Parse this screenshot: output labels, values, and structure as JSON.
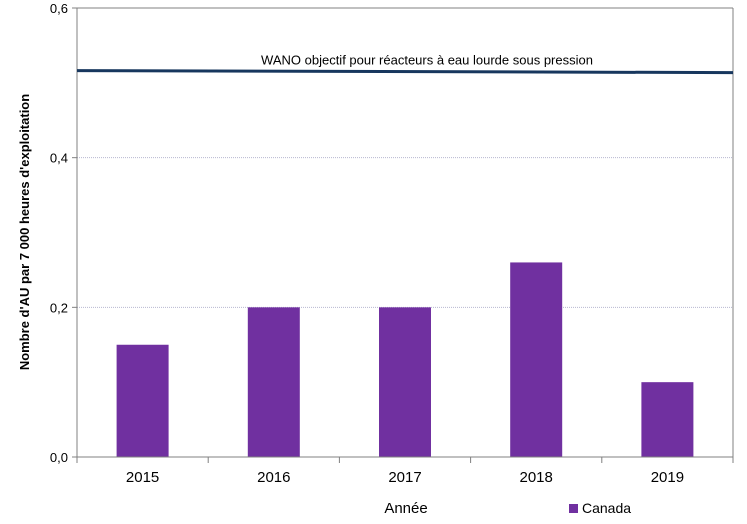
{
  "chart_data": {
    "type": "bar",
    "title": "",
    "categories": [
      "2015",
      "2016",
      "2017",
      "2018",
      "2019"
    ],
    "series": [
      {
        "name": "Canada",
        "values": [
          0.15,
          0.2,
          0.2,
          0.26,
          0.1
        ],
        "color": "#7030a0"
      }
    ],
    "xlabel": "Année",
    "ylabel": "Nombre d'AU par 7 000 heures d'exploitation",
    "ylim": [
      0,
      0.6
    ],
    "yticks": [
      0,
      0.2,
      0.4,
      0.6
    ],
    "ytick_labels": [
      "0,0",
      "0,2",
      "0,4",
      "0,6"
    ],
    "grid": true,
    "legend_position": "bottom-right",
    "reference_line": {
      "label": "WANO objectif pour réacteurs à eau lourde sous pression",
      "value": 0.515,
      "color": "#17375e"
    }
  }
}
